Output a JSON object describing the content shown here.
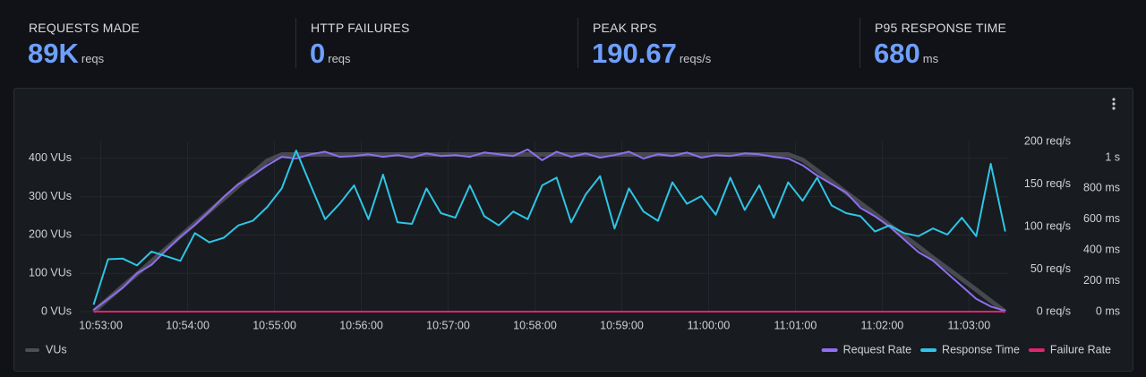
{
  "stats": [
    {
      "label": "REQUESTS MADE",
      "value": "89K",
      "unit": "reqs"
    },
    {
      "label": "HTTP FAILURES",
      "value": 0,
      "unit": "reqs"
    },
    {
      "label": "PEAK RPS",
      "value": 190.67,
      "unit": "reqs/s"
    },
    {
      "label": "P95 RESPONSE TIME",
      "value": 680,
      "unit": "ms"
    }
  ],
  "chart_data": {
    "type": "line",
    "x": [
      "10:52:55",
      "10:53:05",
      "10:53:15",
      "10:53:25",
      "10:53:35",
      "10:53:45",
      "10:53:55",
      "10:54:05",
      "10:54:15",
      "10:54:25",
      "10:54:35",
      "10:54:45",
      "10:54:55",
      "10:55:05",
      "10:55:15",
      "10:55:25",
      "10:55:35",
      "10:55:45",
      "10:55:55",
      "10:56:05",
      "10:56:15",
      "10:56:25",
      "10:56:35",
      "10:56:45",
      "10:56:55",
      "10:57:05",
      "10:57:15",
      "10:57:25",
      "10:57:35",
      "10:57:45",
      "10:57:55",
      "10:58:05",
      "10:58:15",
      "10:58:25",
      "10:58:35",
      "10:58:45",
      "10:58:55",
      "10:59:05",
      "10:59:15",
      "10:59:25",
      "10:59:35",
      "10:59:45",
      "10:59:55",
      "11:00:05",
      "11:00:15",
      "11:00:25",
      "11:00:35",
      "11:00:45",
      "11:00:55",
      "11:01:05",
      "11:01:15",
      "11:01:25",
      "11:01:35",
      "11:01:45",
      "11:01:55",
      "11:02:05",
      "11:02:15",
      "11:02:25",
      "11:02:35",
      "11:02:45",
      "11:02:55",
      "11:03:05",
      "11:03:15",
      "11:03:25"
    ],
    "xlim": [
      "10:52:46",
      "11:03:27"
    ],
    "xticks": [
      "10:53:00",
      "10:54:00",
      "10:55:00",
      "10:56:00",
      "10:57:00",
      "10:58:00",
      "10:59:00",
      "11:00:00",
      "11:01:00",
      "11:02:00",
      "11:03:00"
    ],
    "ylim": [
      0,
      444
    ],
    "yticks": [
      {
        "value": 0,
        "label": "0 VUs"
      },
      {
        "value": 100,
        "label": "100 VUs"
      },
      {
        "value": 200,
        "label": "200 VUs"
      },
      {
        "value": 300,
        "label": "300 VUs"
      },
      {
        "value": 400,
        "label": "400 VUs"
      }
    ],
    "y2lim": [
      0,
      200
    ],
    "y2ticks": [
      {
        "value": 0,
        "label": "0 req/s"
      },
      {
        "value": 50,
        "label": "50 req/s"
      },
      {
        "value": 100,
        "label": "100 req/s"
      },
      {
        "value": 150,
        "label": "150 req/s"
      },
      {
        "value": 200,
        "label": "200 req/s"
      }
    ],
    "y3lim": [
      0,
      1105
    ],
    "y3ticks": [
      {
        "value": 0,
        "label": "0 ms"
      },
      {
        "value": 200,
        "label": "200 ms"
      },
      {
        "value": 400,
        "label": "400 ms"
      },
      {
        "value": 600,
        "label": "600 ms"
      },
      {
        "value": 800,
        "label": "800 ms"
      },
      {
        "value": 1000,
        "label": "1 s"
      }
    ],
    "grid": true,
    "series": [
      {
        "name": "VUs",
        "color": "#4d4f55",
        "axis": "y",
        "values": [
          0,
          33,
          66,
          98,
          131,
          164,
          197,
          230,
          262,
          295,
          328,
          361,
          394,
          410,
          410,
          410,
          410,
          410,
          410,
          410,
          410,
          410,
          410,
          410,
          410,
          410,
          410,
          410,
          410,
          410,
          410,
          410,
          410,
          410,
          410,
          410,
          410,
          410,
          410,
          410,
          410,
          410,
          410,
          410,
          410,
          410,
          410,
          410,
          410,
          396,
          368,
          340,
          311,
          283,
          255,
          226,
          198,
          170,
          141,
          113,
          85,
          57,
          28,
          0
        ]
      },
      {
        "name": "Request Rate",
        "color": "#8f6ff0",
        "axis": "y2",
        "values": [
          2,
          15,
          28,
          45,
          55,
          72,
          88,
          102,
          118,
          135,
          150,
          160,
          172,
          182,
          180,
          185,
          188,
          182,
          183,
          185,
          182,
          184,
          181,
          186,
          183,
          184,
          182,
          187,
          185,
          183,
          190.67,
          178,
          188,
          182,
          186,
          181,
          184,
          188,
          180,
          185,
          183,
          187,
          181,
          184,
          183,
          186,
          185,
          182,
          180,
          172,
          160,
          150,
          140,
          122,
          112,
          100,
          85,
          70,
          60,
          45,
          30,
          15,
          6,
          1
        ]
      },
      {
        "name": "Response Time",
        "color": "#2ec5e6",
        "axis": "y3",
        "values": [
          45,
          340,
          345,
          300,
          390,
          360,
          330,
          510,
          450,
          480,
          560,
          590,
          680,
          800,
          1046,
          820,
          600,
          700,
          820,
          600,
          890,
          580,
          570,
          800,
          640,
          610,
          820,
          620,
          560,
          650,
          600,
          820,
          870,
          580,
          760,
          880,
          540,
          800,
          650,
          590,
          840,
          700,
          750,
          630,
          870,
          660,
          820,
          610,
          840,
          720,
          870,
          690,
          640,
          620,
          520,
          560,
          510,
          490,
          540,
          500,
          610,
          490,
          960,
          520
        ]
      },
      {
        "name": "Failure Rate",
        "color": "#e2236f",
        "axis": "y2",
        "values": [
          0,
          0,
          0,
          0,
          0,
          0,
          0,
          0,
          0,
          0,
          0,
          0,
          0,
          0,
          0,
          0,
          0,
          0,
          0,
          0,
          0,
          0,
          0,
          0,
          0,
          0,
          0,
          0,
          0,
          0,
          0,
          0,
          0,
          0,
          0,
          0,
          0,
          0,
          0,
          0,
          0,
          0,
          0,
          0,
          0,
          0,
          0,
          0,
          0,
          0,
          0,
          0,
          0,
          0,
          0,
          0,
          0,
          0,
          0,
          0,
          0,
          0,
          0,
          0
        ]
      }
    ]
  }
}
